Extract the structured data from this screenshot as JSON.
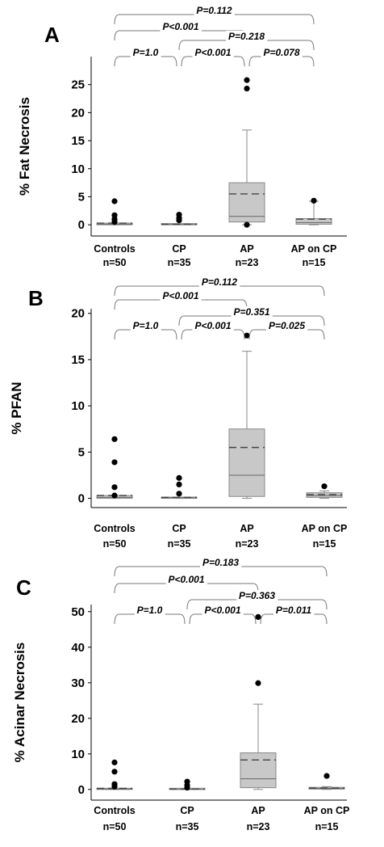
{
  "chart_data": [
    {
      "type": "box",
      "panel_label": "A",
      "ylabel": "% Fat Necrosis",
      "ylim": [
        -2,
        30
      ],
      "yticks": [
        0,
        5,
        10,
        15,
        20,
        25
      ],
      "categories": [
        {
          "name": "Controls",
          "n": "n=50"
        },
        {
          "name": "CP",
          "n": "n=35"
        },
        {
          "name": "AP",
          "n": "n=23"
        },
        {
          "name": "AP on CP",
          "n": "n=15"
        }
      ],
      "boxes": [
        {
          "q1": 0,
          "median": 0.1,
          "q3": 0.3,
          "mean": 0.3,
          "whisker_low": 0,
          "whisker_high": 0.3,
          "outliers": [
            0.5,
            1.0,
            1.7,
            4.2
          ]
        },
        {
          "q1": 0,
          "median": 0.05,
          "q3": 0.1,
          "mean": 0.1,
          "whisker_low": 0,
          "whisker_high": 0.1,
          "outliers": [
            0.8,
            1.2,
            1.8
          ]
        },
        {
          "q1": 0.5,
          "median": 1.5,
          "q3": 7.5,
          "mean": 5.5,
          "whisker_low": 0,
          "whisker_high": 16.9,
          "outliers": [
            0,
            24.3,
            25.8
          ]
        },
        {
          "q1": 0.1,
          "median": 0.4,
          "q3": 1.1,
          "mean": 1.0,
          "whisker_low": 0,
          "whisker_high": 4.2,
          "outliers": [
            4.3
          ]
        }
      ],
      "comparisons": [
        {
          "from": 0,
          "to": 3,
          "label": "P=0.112"
        },
        {
          "from": 0,
          "to": 2,
          "label": "P<0.001"
        },
        {
          "from": 1,
          "to": 3,
          "label": "P=0.218"
        },
        {
          "from": 0,
          "to": 1,
          "label": "P=1.0"
        },
        {
          "from": 1,
          "to": 2,
          "label": "P<0.001"
        },
        {
          "from": 2,
          "to": 3,
          "label": "P=0.078"
        }
      ]
    },
    {
      "type": "box",
      "panel_label": "B",
      "ylabel": "% PFAN",
      "ylim": [
        -1,
        20.5
      ],
      "yticks": [
        0,
        5,
        10,
        15,
        20
      ],
      "categories": [
        {
          "name": "Controls",
          "n": "n=50"
        },
        {
          "name": "CP",
          "n": "n=35"
        },
        {
          "name": "AP",
          "n": "n=23"
        },
        {
          "name": "AP on CP",
          "n": "n=15"
        }
      ],
      "boxes": [
        {
          "q1": 0,
          "median": 0.1,
          "q3": 0.3,
          "mean": 0.3,
          "whisker_low": 0,
          "whisker_high": 0.3,
          "outliers": [
            0.3,
            1.2,
            3.9,
            6.4
          ]
        },
        {
          "q1": 0,
          "median": 0.05,
          "q3": 0.1,
          "mean": 0.1,
          "whisker_low": 0,
          "whisker_high": 0.1,
          "outliers": [
            0.5,
            1.5,
            2.2
          ]
        },
        {
          "q1": 0.2,
          "median": 2.5,
          "q3": 7.5,
          "mean": 5.5,
          "whisker_low": 0,
          "whisker_high": 15.9,
          "outliers": [
            17.6
          ]
        },
        {
          "q1": 0.1,
          "median": 0.3,
          "q3": 0.6,
          "mean": 0.4,
          "whisker_low": 0,
          "whisker_high": 0.8,
          "outliers": [
            1.3
          ]
        }
      ],
      "comparisons": [
        {
          "from": 0,
          "to": 3,
          "label": "P=0.112"
        },
        {
          "from": 0,
          "to": 2,
          "label": "P<0.001"
        },
        {
          "from": 1,
          "to": 3,
          "label": "P=0.351"
        },
        {
          "from": 0,
          "to": 1,
          "label": "P=1.0"
        },
        {
          "from": 1,
          "to": 2,
          "label": "P<0.001"
        },
        {
          "from": 2,
          "to": 3,
          "label": "P=0.025"
        }
      ]
    },
    {
      "type": "box",
      "panel_label": "C",
      "ylabel": "% Acinar Necrosis",
      "ylim": [
        -3,
        52
      ],
      "yticks": [
        0,
        10,
        20,
        30,
        40,
        50
      ],
      "categories": [
        {
          "name": "Controls",
          "n": "n=50"
        },
        {
          "name": "CP",
          "n": "n=35"
        },
        {
          "name": "AP",
          "n": "n=23"
        },
        {
          "name": "AP on CP",
          "n": "n=15"
        }
      ],
      "boxes": [
        {
          "q1": 0,
          "median": 0.1,
          "q3": 0.3,
          "mean": 0.3,
          "whisker_low": 0,
          "whisker_high": 0.3,
          "outliers": [
            0.8,
            1.5,
            5.0,
            7.6
          ]
        },
        {
          "q1": 0,
          "median": 0.05,
          "q3": 0.1,
          "mean": 0.1,
          "whisker_low": 0,
          "whisker_high": 0.1,
          "outliers": [
            0.5,
            1.2,
            2.2
          ]
        },
        {
          "q1": 0.5,
          "median": 3.0,
          "q3": 10.3,
          "mean": 8.3,
          "whisker_low": 0,
          "whisker_high": 24.0,
          "outliers": [
            29.9,
            48.5
          ]
        },
        {
          "q1": 0.1,
          "median": 0.3,
          "q3": 0.6,
          "mean": 0.4,
          "whisker_low": 0,
          "whisker_high": 0.8,
          "outliers": [
            3.8
          ]
        }
      ],
      "comparisons": [
        {
          "from": 0,
          "to": 3,
          "label": "P=0.183"
        },
        {
          "from": 0,
          "to": 2,
          "label": "P<0.001"
        },
        {
          "from": 1,
          "to": 3,
          "label": "P=0.363"
        },
        {
          "from": 0,
          "to": 1,
          "label": "P=1.0"
        },
        {
          "from": 1,
          "to": 2,
          "label": "P<0.001"
        },
        {
          "from": 2,
          "to": 3,
          "label": "P=0.011"
        }
      ]
    }
  ]
}
